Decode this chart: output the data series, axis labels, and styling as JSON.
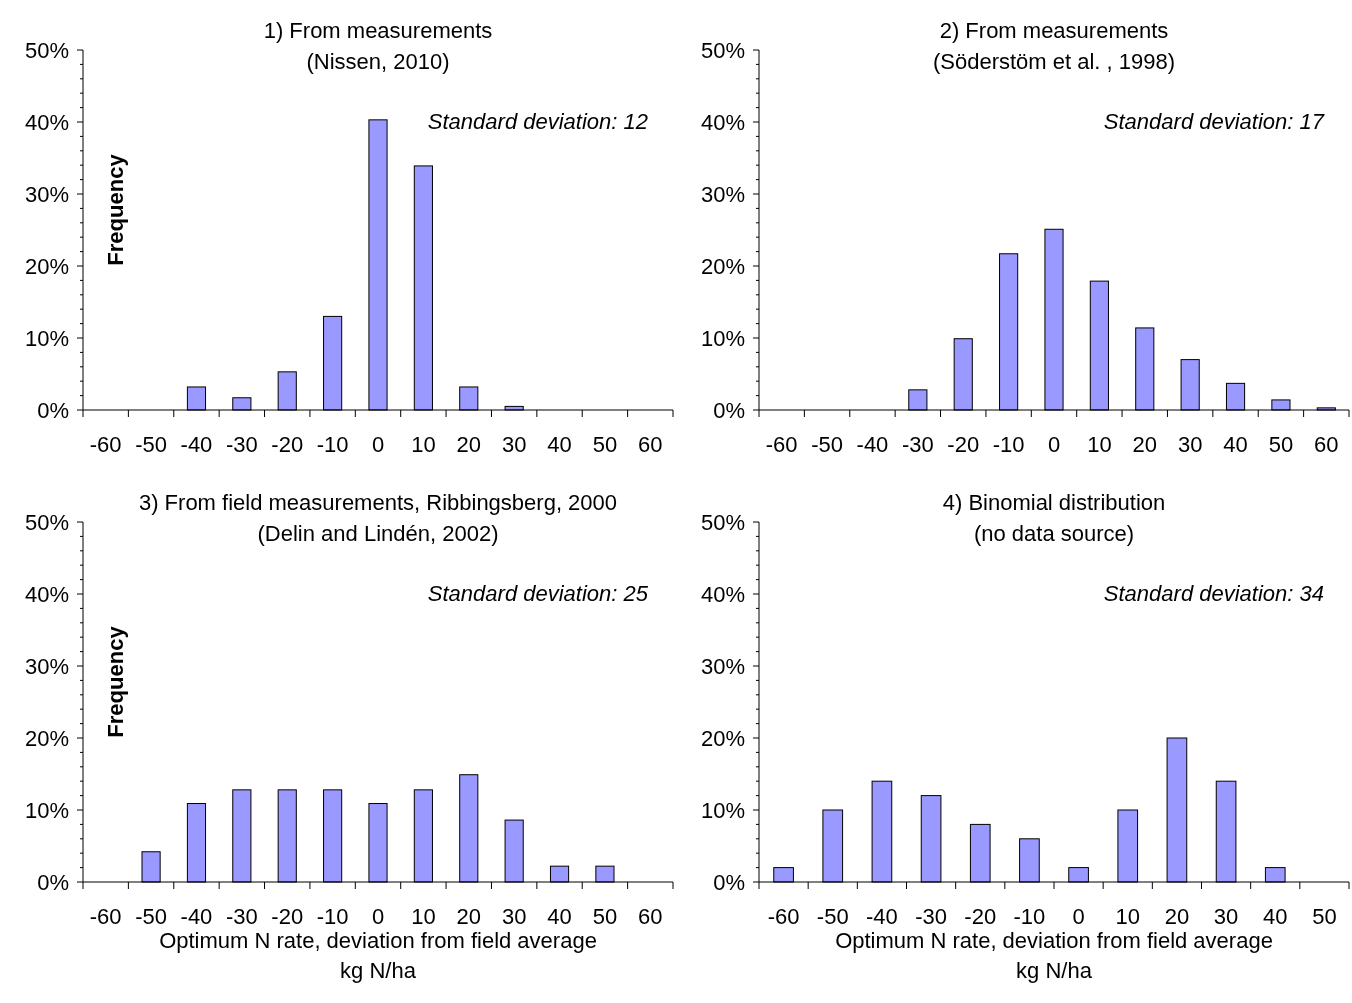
{
  "chart_data": [
    {
      "type": "bar",
      "title": "1)  From measurements",
      "subtitle": "(Nissen, 2010)",
      "ylabel": "Frequency",
      "annotations": [
        "Standard deviation: 12"
      ],
      "categories": [
        "-60",
        "-50",
        "-40",
        "-30",
        "-20",
        "-10",
        "0",
        "10",
        "20",
        "30",
        "40",
        "50",
        "60"
      ],
      "values": [
        0,
        0,
        3.2,
        1.7,
        5.3,
        13,
        40.3,
        33.9,
        3.2,
        0.5,
        0,
        0,
        0
      ],
      "color": "#9999ff",
      "ylim": [
        0,
        50
      ],
      "yticks": [
        {
          "value": 0,
          "label": "0%"
        },
        {
          "value": 10,
          "label": "10%"
        },
        {
          "value": 20,
          "label": "20%"
        },
        {
          "value": 30,
          "label": "30%"
        },
        {
          "value": 40,
          "label": "40%"
        },
        {
          "value": 50,
          "label": "50%"
        }
      ]
    },
    {
      "type": "bar",
      "title": "2)  From measurements",
      "subtitle": "(Söderstöm et al. , 1998)",
      "annotations": [
        "Standard deviation: 17"
      ],
      "categories": [
        "-60",
        "-50",
        "-40",
        "-30",
        "-20",
        "-10",
        "0",
        "10",
        "20",
        "30",
        "40",
        "50",
        "60"
      ],
      "values": [
        0,
        0,
        0,
        2.8,
        9.9,
        21.7,
        25.1,
        17.9,
        11.4,
        7.0,
        3.7,
        1.4,
        0.3
      ],
      "color": "#9999ff",
      "ylim": [
        0,
        50
      ],
      "yticks": [
        {
          "value": 0,
          "label": "0%"
        },
        {
          "value": 10,
          "label": "10%"
        },
        {
          "value": 20,
          "label": "20%"
        },
        {
          "value": 30,
          "label": "30%"
        },
        {
          "value": 40,
          "label": "40%"
        },
        {
          "value": 50,
          "label": "50%"
        }
      ]
    },
    {
      "type": "bar",
      "title": "3)  From field measurements, Ribbingsberg, 2000",
      "subtitle": "(Delin and Lindén, 2002)",
      "ylabel": "Frequency",
      "xlabel": "Optimum N rate, deviation from field average\nkg N/ha",
      "annotations": [
        "Standard deviation: 25"
      ],
      "categories": [
        "-60",
        "-50",
        "-40",
        "-30",
        "-20",
        "-10",
        "0",
        "10",
        "20",
        "30",
        "40",
        "50",
        "60"
      ],
      "values": [
        0,
        4.2,
        10.9,
        12.8,
        12.8,
        12.8,
        10.9,
        12.8,
        14.9,
        8.6,
        2.2,
        2.2,
        0
      ],
      "color": "#9999ff",
      "ylim": [
        0,
        50
      ],
      "yticks": [
        {
          "value": 0,
          "label": "0%"
        },
        {
          "value": 10,
          "label": "10%"
        },
        {
          "value": 20,
          "label": "20%"
        },
        {
          "value": 30,
          "label": "30%"
        },
        {
          "value": 40,
          "label": "40%"
        },
        {
          "value": 50,
          "label": "50%"
        }
      ]
    },
    {
      "type": "bar",
      "title": "4)  Binomial distribution",
      "subtitle": "(no data source)",
      "xlabel": "Optimum N rate, deviation from field average\nkg N/ha",
      "annotations": [
        "Standard deviation: 34"
      ],
      "categories": [
        "-60",
        "-50",
        "-40",
        "-30",
        "-20",
        "-10",
        "0",
        "10",
        "20",
        "30",
        "40",
        "50"
      ],
      "values": [
        2,
        10,
        14,
        12,
        8,
        6,
        2,
        10,
        20,
        14,
        2,
        0
      ],
      "color": "#9999ff",
      "ylim": [
        0,
        50
      ],
      "yticks": [
        {
          "value": 0,
          "label": "0%"
        },
        {
          "value": 10,
          "label": "10%"
        },
        {
          "value": 20,
          "label": "20%"
        },
        {
          "value": 30,
          "label": "30%"
        },
        {
          "value": 40,
          "label": "40%"
        },
        {
          "value": 50,
          "label": "50%"
        }
      ]
    }
  ]
}
